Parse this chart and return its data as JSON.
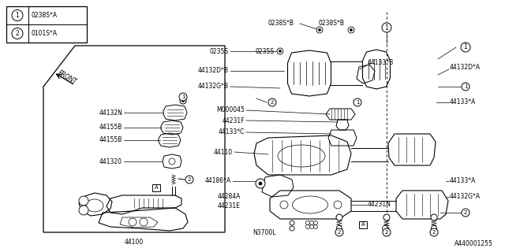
{
  "bg_color": "#ffffff",
  "line_color": "#000000",
  "text_color": "#000000",
  "bottom_right_label": "A440001255",
  "legend": [
    {
      "num": "1",
      "text": "0238S*A"
    },
    {
      "num": "2",
      "text": "0101S*A"
    }
  ],
  "figsize": [
    6.4,
    3.2
  ],
  "dpi": 100
}
